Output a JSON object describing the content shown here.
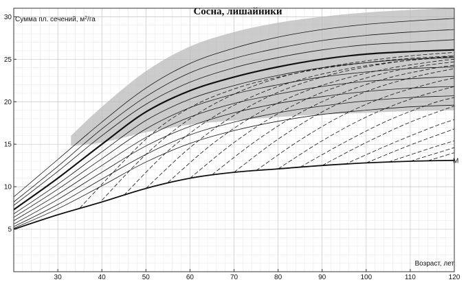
{
  "chart_data": {
    "type": "line",
    "title": "Сосна, лишайники",
    "ylabel": "Сумма пл. сечений, м²/га",
    "ylabel_main": "Сумма пл. сечений, м",
    "ylabel_sup": "2",
    "ylabel_tail": "/га",
    "xlabel": "Возраст, лет",
    "xlim": [
      20,
      120
    ],
    "ylim": [
      0,
      31
    ],
    "x_ticks": [
      30,
      40,
      50,
      60,
      70,
      80,
      90,
      100,
      110,
      120
    ],
    "y_ticks": [
      5,
      10,
      15,
      20,
      25,
      30
    ],
    "grid": true,
    "curve_label": "M",
    "shaded_band": {
      "lower": {
        "x": [
          33,
          40,
          50,
          60,
          70,
          80,
          90,
          100,
          110,
          120
        ],
        "y": [
          14.8,
          15.2,
          16.4,
          17.3,
          17.8,
          18.2,
          18.5,
          18.7,
          18.9,
          19.0
        ]
      },
      "upper": {
        "x": [
          33,
          40,
          50,
          60,
          70,
          80,
          90,
          100,
          110,
          120
        ],
        "y": [
          16.0,
          19.4,
          23.6,
          26.5,
          28.2,
          29.3,
          30.0,
          30.5,
          30.8,
          31.0
        ]
      }
    },
    "series": [
      {
        "style": "thick",
        "x": [
          20,
          30,
          40,
          50,
          60,
          70,
          80,
          90,
          100,
          110,
          120
        ],
        "y": [
          7.3,
          11.0,
          15.0,
          18.8,
          21.3,
          22.9,
          24.1,
          25.0,
          25.6,
          25.9,
          26.1
        ]
      },
      {
        "style": "M",
        "x": [
          20,
          30,
          40,
          50,
          60,
          70,
          80,
          90,
          100,
          110,
          120
        ],
        "y": [
          5.0,
          6.7,
          8.2,
          9.8,
          11.0,
          11.7,
          12.1,
          12.5,
          12.8,
          13.0,
          13.1
        ]
      },
      {
        "style": "thin",
        "x": [
          20,
          30,
          40,
          50,
          60,
          70,
          80,
          90,
          100,
          110,
          120
        ],
        "y": [
          8.8,
          13.2,
          17.6,
          21.6,
          24.5,
          26.3,
          27.6,
          28.5,
          29.1,
          29.5,
          29.8
        ]
      },
      {
        "style": "thin",
        "x": [
          20,
          30,
          40,
          50,
          60,
          70,
          80,
          90,
          100,
          110,
          120
        ],
        "y": [
          8.2,
          12.4,
          16.8,
          20.6,
          23.4,
          25.1,
          26.3,
          27.2,
          27.8,
          28.2,
          28.5
        ]
      },
      {
        "style": "thin",
        "x": [
          20,
          30,
          40,
          50,
          60,
          70,
          80,
          90,
          100,
          110,
          120
        ],
        "y": [
          7.8,
          11.8,
          16.0,
          19.7,
          22.3,
          24.0,
          25.2,
          26.1,
          26.7,
          27.0,
          27.3
        ]
      },
      {
        "style": "thin",
        "x": [
          20,
          30,
          40,
          50,
          60,
          70,
          80,
          90,
          100,
          110,
          120
        ],
        "y": [
          6.8,
          10.3,
          14.1,
          17.8,
          20.3,
          21.9,
          23.1,
          24.0,
          24.6,
          25.0,
          25.2
        ]
      },
      {
        "style": "thin",
        "x": [
          20,
          30,
          40,
          50,
          60,
          70,
          80,
          90,
          100,
          110,
          120
        ],
        "y": [
          6.4,
          9.7,
          13.3,
          16.8,
          19.3,
          20.9,
          22.0,
          22.9,
          23.5,
          23.9,
          24.1
        ]
      },
      {
        "style": "thin",
        "x": [
          20,
          30,
          40,
          50,
          60,
          70,
          80,
          90,
          100,
          110,
          120
        ],
        "y": [
          6.0,
          9.1,
          12.5,
          15.8,
          18.2,
          19.8,
          20.9,
          21.8,
          22.4,
          22.7,
          23.0
        ]
      },
      {
        "style": "thin",
        "x": [
          20,
          30,
          40,
          50,
          60,
          70,
          80,
          90,
          100,
          110,
          120
        ],
        "y": [
          5.6,
          8.5,
          11.7,
          14.8,
          17.1,
          18.7,
          19.8,
          20.6,
          21.2,
          21.6,
          21.8
        ]
      },
      {
        "style": "thin",
        "x": [
          20,
          30,
          40,
          50,
          60,
          70,
          80,
          90,
          100,
          110,
          120
        ],
        "y": [
          5.3,
          7.9,
          10.9,
          13.8,
          16.1,
          17.6,
          18.7,
          19.5,
          20.1,
          20.5,
          20.7
        ]
      },
      {
        "style": "thin",
        "x": [
          20,
          30,
          40,
          50,
          60,
          70,
          80,
          90,
          100,
          110,
          120
        ],
        "y": [
          5.1,
          7.4,
          10.1,
          12.9,
          15.1,
          16.6,
          17.7,
          18.5,
          19.0,
          19.4,
          19.6
        ]
      },
      {
        "style": "dashed",
        "x": [
          35,
          50,
          60,
          70,
          80,
          90,
          100,
          110,
          120
        ],
        "y": [
          7.5,
          15.6,
          19.3,
          21.5,
          22.9,
          23.9,
          24.6,
          25.1,
          25.4
        ]
      },
      {
        "style": "dashed",
        "x": [
          40,
          50,
          60,
          70,
          80,
          90,
          100,
          110,
          120
        ],
        "y": [
          8.4,
          13.8,
          18.0,
          20.9,
          22.8,
          24.0,
          24.8,
          25.4,
          25.8
        ]
      },
      {
        "style": "dashed",
        "x": [
          45,
          55,
          65,
          75,
          85,
          95,
          105,
          115,
          120
        ],
        "y": [
          9.0,
          14.2,
          18.1,
          20.8,
          22.6,
          23.8,
          24.6,
          25.1,
          25.3
        ]
      },
      {
        "style": "dashed",
        "x": [
          50,
          60,
          70,
          80,
          90,
          100,
          110,
          120
        ],
        "y": [
          9.8,
          14.6,
          18.4,
          21.1,
          22.9,
          24.1,
          24.9,
          25.4
        ]
      },
      {
        "style": "dashed",
        "x": [
          55,
          65,
          75,
          85,
          95,
          105,
          115,
          120
        ],
        "y": [
          10.5,
          15.0,
          18.5,
          21.0,
          22.7,
          23.9,
          24.7,
          25.0
        ]
      },
      {
        "style": "dashed",
        "x": [
          60,
          70,
          80,
          90,
          100,
          110,
          120
        ],
        "y": [
          11.0,
          15.2,
          18.6,
          21.1,
          22.8,
          24.0,
          24.7
        ]
      },
      {
        "style": "dashed",
        "x": [
          65,
          75,
          85,
          95,
          105,
          115,
          120
        ],
        "y": [
          11.4,
          15.4,
          18.7,
          21.1,
          22.8,
          23.9,
          24.3
        ]
      },
      {
        "style": "dashed",
        "x": [
          70,
          80,
          90,
          100,
          110,
          120
        ],
        "y": [
          11.7,
          15.6,
          18.8,
          21.2,
          22.8,
          23.9
        ]
      },
      {
        "style": "dashed",
        "x": [
          75,
          85,
          95,
          105,
          115,
          120
        ],
        "y": [
          11.9,
          15.5,
          18.5,
          20.7,
          22.2,
          22.8
        ]
      },
      {
        "style": "dashed",
        "x": [
          80,
          90,
          100,
          110,
          120
        ],
        "y": [
          12.1,
          15.4,
          18.2,
          20.3,
          21.8
        ]
      },
      {
        "style": "dashed",
        "x": [
          85,
          95,
          105,
          115,
          120
        ],
        "y": [
          12.3,
          15.2,
          17.8,
          19.8,
          20.5
        ]
      },
      {
        "style": "dashed",
        "x": [
          90,
          100,
          110,
          120
        ],
        "y": [
          12.5,
          15.2,
          17.6,
          19.5
        ]
      },
      {
        "style": "dashed",
        "x": [
          95,
          105,
          115,
          120
        ],
        "y": [
          12.6,
          14.9,
          17.0,
          17.9
        ]
      },
      {
        "style": "dashed",
        "x": [
          100,
          110,
          120
        ],
        "y": [
          12.8,
          14.9,
          16.8
        ]
      },
      {
        "style": "dashed",
        "x": [
          105,
          115,
          120
        ],
        "y": [
          12.9,
          14.6,
          15.4
        ]
      },
      {
        "style": "dashed",
        "x": [
          110,
          120
        ],
        "y": [
          13.0,
          14.6
        ]
      },
      {
        "style": "dashed",
        "x": [
          114,
          120
        ],
        "y": [
          13.05,
          14.0
        ]
      }
    ]
  }
}
